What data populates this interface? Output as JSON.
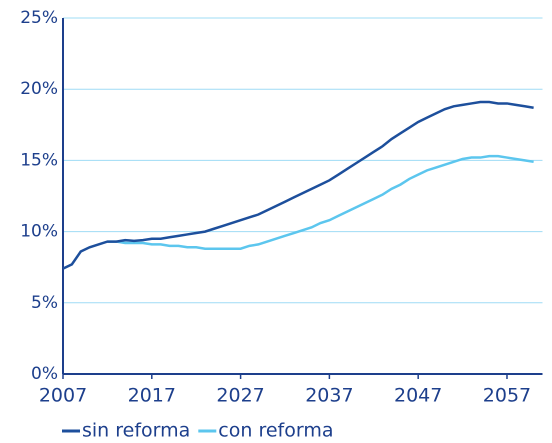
{
  "chart_data": {
    "type": "line",
    "x": [
      2007,
      2008,
      2009,
      2010,
      2011,
      2012,
      2013,
      2014,
      2015,
      2016,
      2017,
      2018,
      2019,
      2020,
      2021,
      2022,
      2023,
      2024,
      2025,
      2026,
      2027,
      2028,
      2029,
      2030,
      2031,
      2032,
      2033,
      2034,
      2035,
      2036,
      2037,
      2038,
      2039,
      2040,
      2041,
      2042,
      2043,
      2044,
      2045,
      2046,
      2047,
      2048,
      2049,
      2050,
      2051,
      2052,
      2053,
      2054,
      2055,
      2056,
      2057,
      2058,
      2059,
      2060
    ],
    "series": [
      {
        "name": "sin reforma",
        "color": "#1d4f9c",
        "values": [
          7.4,
          7.7,
          8.6,
          8.9,
          9.1,
          9.3,
          9.3,
          9.4,
          9.35,
          9.4,
          9.5,
          9.5,
          9.6,
          9.7,
          9.8,
          9.9,
          10.0,
          10.2,
          10.4,
          10.6,
          10.8,
          11.0,
          11.2,
          11.5,
          11.8,
          12.1,
          12.4,
          12.7,
          13.0,
          13.3,
          13.6,
          14.0,
          14.4,
          14.8,
          15.2,
          15.6,
          16.0,
          16.5,
          16.9,
          17.3,
          17.7,
          18.0,
          18.3,
          18.6,
          18.8,
          18.9,
          19.0,
          19.1,
          19.1,
          19.0,
          19.0,
          18.9,
          18.8,
          18.7
        ]
      },
      {
        "name": "con reforma",
        "color": "#5cc6ee",
        "values": [
          null,
          null,
          null,
          null,
          null,
          9.3,
          9.3,
          9.2,
          9.2,
          9.2,
          9.1,
          9.1,
          9.0,
          9.0,
          8.9,
          8.9,
          8.8,
          8.8,
          8.8,
          8.8,
          8.8,
          9.0,
          9.1,
          9.3,
          9.5,
          9.7,
          9.9,
          10.1,
          10.3,
          10.6,
          10.8,
          11.1,
          11.4,
          11.7,
          12.0,
          12.3,
          12.6,
          13.0,
          13.3,
          13.7,
          14.0,
          14.3,
          14.5,
          14.7,
          14.9,
          15.1,
          15.2,
          15.2,
          15.3,
          15.3,
          15.2,
          15.1,
          15.0,
          14.9
        ]
      }
    ],
    "xlim": [
      2007,
      2061
    ],
    "xticks": [
      2007,
      2017,
      2027,
      2037,
      2047,
      2057
    ],
    "ylim": [
      0,
      25
    ],
    "yticks": [
      {
        "value": 0,
        "label": "0%"
      },
      {
        "value": 5,
        "label": "5%"
      },
      {
        "value": 10,
        "label": "10%"
      },
      {
        "value": 15,
        "label": "15%"
      },
      {
        "value": 20,
        "label": "20%"
      },
      {
        "value": 25,
        "label": "25%"
      }
    ],
    "grid": true,
    "grid_color": "#9fdcf5",
    "axis_color": "#1d3f8c"
  }
}
